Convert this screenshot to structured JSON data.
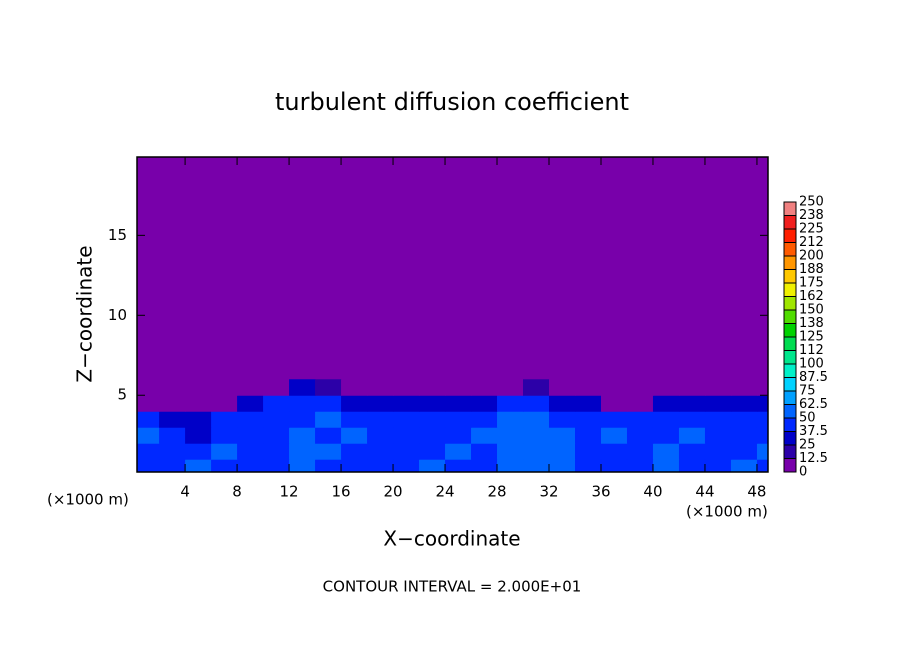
{
  "chart_data": {
    "type": "contour",
    "title": "turbulent diffusion coefficient",
    "xlabel": "X−coordinate",
    "ylabel": "Z−coordinate",
    "x_unit_label": "(×1000 m)",
    "y_unit_label": "(×1000 m)",
    "note": "CONTOUR INTERVAL = 2.000E+01",
    "xlim": [
      0.3,
      48.85
    ],
    "xticks": [
      4,
      8,
      12,
      16,
      20,
      24,
      28,
      32,
      36,
      40,
      44,
      48
    ],
    "ylim": [
      0.2,
      19.9
    ],
    "yticks": [
      5,
      10,
      15
    ],
    "colorbar": {
      "ticks": [
        0,
        12.5,
        25,
        37.5,
        50,
        62.5,
        75,
        87.5,
        100,
        {
          "value": 112.5,
          "label": "112"
        },
        125,
        {
          "value": 137.5,
          "label": "138"
        },
        150,
        {
          "value": 162.5,
          "label": "162"
        },
        175,
        {
          "value": 187.5,
          "label": "188"
        },
        200,
        {
          "value": 212.5,
          "label": "212"
        },
        225,
        {
          "value": 237.5,
          "label": "238"
        },
        250
      ],
      "colors": [
        "#7800aa",
        "#2c00a8",
        "#0000c8",
        "#0028ff",
        "#0064ff",
        "#00a0ff",
        "#00d2ff",
        "#00f0c8",
        "#00e68c",
        "#00dc50",
        "#00d200",
        "#50dc00",
        "#a0e600",
        "#f0f000",
        "#ffc800",
        "#ff9600",
        "#ff5a00",
        "#ff1e00",
        "#f01e1e",
        "#f08080"
      ]
    },
    "field": {
      "x": [
        1,
        3,
        5,
        7,
        9,
        11,
        13,
        15,
        17,
        19,
        21,
        23,
        25,
        27,
        29,
        31,
        33,
        35,
        37,
        39,
        41,
        43,
        45,
        47,
        49
      ],
      "y": [
        0.5,
        1.5,
        2.5,
        3.5,
        4.5,
        5.5
      ],
      "z": [
        [
          40,
          45,
          50,
          42,
          38,
          45,
          50,
          48,
          44,
          40,
          46,
          52,
          45,
          40,
          55,
          60,
          50,
          45,
          42,
          48,
          50,
          44,
          46,
          52,
          48
        ],
        [
          45,
          38,
          42,
          50,
          40,
          42,
          55,
          50,
          46,
          48,
          40,
          45,
          50,
          44,
          58,
          62,
          55,
          48,
          44,
          42,
          50,
          46,
          40,
          48,
          50
        ],
        [
          50,
          40,
          35,
          44,
          42,
          48,
          50,
          45,
          52,
          44,
          48,
          40,
          46,
          50,
          52,
          58,
          50,
          46,
          50,
          44,
          46,
          50,
          42,
          44,
          46
        ],
        [
          42,
          36,
          30,
          40,
          44,
          46,
          48,
          52,
          44,
          40,
          46,
          38,
          44,
          46,
          50,
          52,
          48,
          44,
          46,
          40,
          44,
          46,
          40,
          42,
          44
        ],
        [
          0,
          0,
          0,
          0,
          30,
          40,
          44,
          46,
          36,
          30,
          36,
          28,
          32,
          30,
          38,
          42,
          36,
          30,
          0,
          0,
          32,
          36,
          30,
          28,
          32
        ],
        [
          0,
          0,
          0,
          0,
          0,
          0,
          30,
          20,
          0,
          0,
          0,
          0,
          0,
          0,
          0,
          20,
          0,
          0,
          0,
          0,
          0,
          0,
          0,
          0,
          0
        ]
      ]
    }
  }
}
